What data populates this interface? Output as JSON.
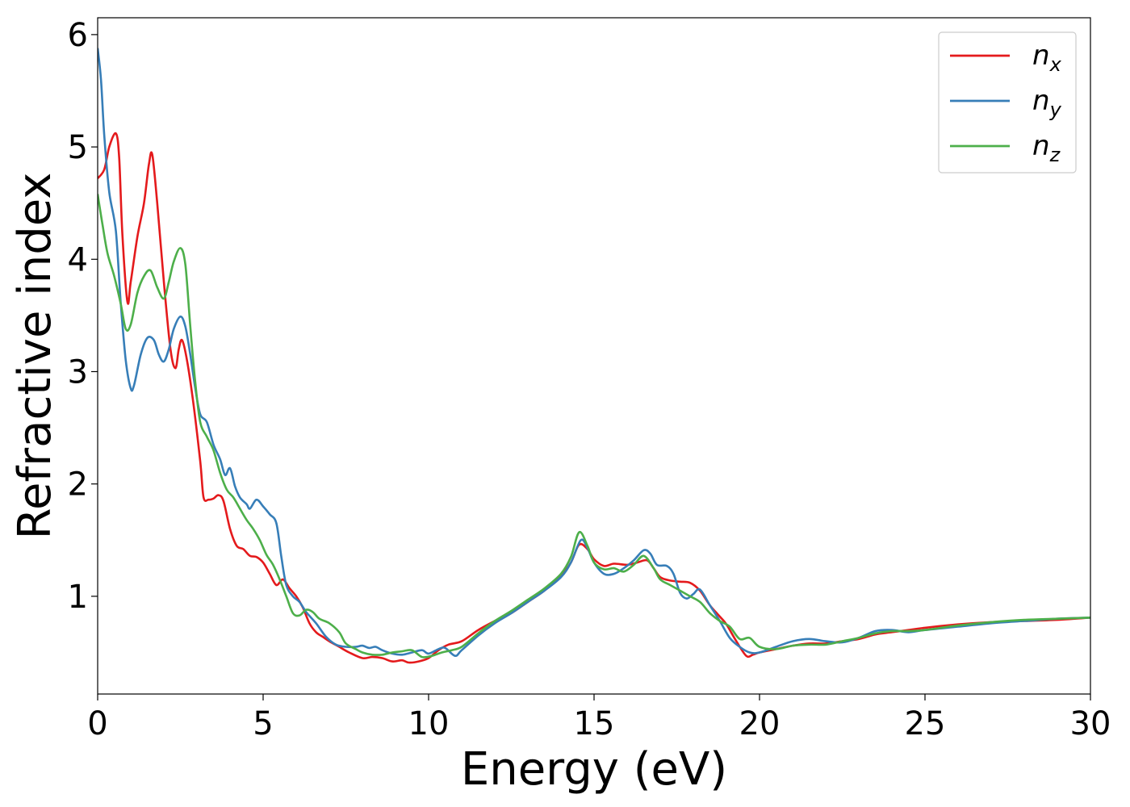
{
  "chart_data": {
    "type": "line",
    "xlabel": "Energy (eV)",
    "ylabel": "Refractive index",
    "xlim": [
      0,
      30
    ],
    "ylim": [
      0.13,
      6.15
    ],
    "xticks": [
      "0",
      "5",
      "10",
      "15",
      "20",
      "25",
      "30"
    ],
    "yticks": [
      "1",
      "2",
      "3",
      "4",
      "5",
      "6"
    ],
    "grid": false,
    "legend_position": "top-right",
    "series": [
      {
        "name": "n",
        "sub": "x",
        "color": "#e41a1c",
        "points": [
          [
            0,
            4.72
          ],
          [
            0.2,
            4.8
          ],
          [
            0.35,
            5.0
          ],
          [
            0.55,
            5.12
          ],
          [
            0.65,
            4.9
          ],
          [
            0.75,
            4.2
          ],
          [
            0.9,
            3.62
          ],
          [
            1.0,
            3.8
          ],
          [
            1.2,
            4.2
          ],
          [
            1.4,
            4.5
          ],
          [
            1.55,
            4.85
          ],
          [
            1.65,
            4.93
          ],
          [
            1.8,
            4.5
          ],
          [
            2.0,
            3.8
          ],
          [
            2.2,
            3.2
          ],
          [
            2.35,
            3.03
          ],
          [
            2.45,
            3.2
          ],
          [
            2.55,
            3.28
          ],
          [
            2.7,
            3.1
          ],
          [
            2.9,
            2.7
          ],
          [
            3.1,
            2.2
          ],
          [
            3.2,
            1.88
          ],
          [
            3.35,
            1.86
          ],
          [
            3.5,
            1.87
          ],
          [
            3.65,
            1.9
          ],
          [
            3.8,
            1.85
          ],
          [
            4.0,
            1.6
          ],
          [
            4.2,
            1.45
          ],
          [
            4.4,
            1.42
          ],
          [
            4.6,
            1.36
          ],
          [
            4.8,
            1.35
          ],
          [
            5.0,
            1.3
          ],
          [
            5.2,
            1.2
          ],
          [
            5.4,
            1.1
          ],
          [
            5.6,
            1.15
          ],
          [
            5.8,
            1.07
          ],
          [
            6.0,
            1.0
          ],
          [
            6.2,
            0.9
          ],
          [
            6.4,
            0.76
          ],
          [
            6.6,
            0.68
          ],
          [
            6.8,
            0.64
          ],
          [
            7.0,
            0.6
          ],
          [
            7.3,
            0.55
          ],
          [
            7.6,
            0.5
          ],
          [
            8.0,
            0.45
          ],
          [
            8.3,
            0.46
          ],
          [
            8.6,
            0.45
          ],
          [
            8.9,
            0.42
          ],
          [
            9.2,
            0.43
          ],
          [
            9.4,
            0.41
          ],
          [
            9.7,
            0.42
          ],
          [
            10.0,
            0.45
          ],
          [
            10.3,
            0.52
          ],
          [
            10.6,
            0.57
          ],
          [
            11.0,
            0.6
          ],
          [
            11.5,
            0.7
          ],
          [
            12.0,
            0.78
          ],
          [
            12.5,
            0.85
          ],
          [
            13.0,
            0.95
          ],
          [
            13.5,
            1.05
          ],
          [
            14.0,
            1.18
          ],
          [
            14.3,
            1.3
          ],
          [
            14.55,
            1.46
          ],
          [
            14.8,
            1.42
          ],
          [
            15.0,
            1.33
          ],
          [
            15.3,
            1.27
          ],
          [
            15.6,
            1.29
          ],
          [
            16.0,
            1.28
          ],
          [
            16.3,
            1.3
          ],
          [
            16.6,
            1.32
          ],
          [
            16.8,
            1.25
          ],
          [
            17.0,
            1.17
          ],
          [
            17.3,
            1.14
          ],
          [
            17.6,
            1.13
          ],
          [
            17.9,
            1.12
          ],
          [
            18.2,
            1.05
          ],
          [
            18.5,
            0.92
          ],
          [
            18.8,
            0.82
          ],
          [
            19.0,
            0.75
          ],
          [
            19.3,
            0.6
          ],
          [
            19.6,
            0.47
          ],
          [
            19.8,
            0.48
          ],
          [
            20.0,
            0.5
          ],
          [
            20.5,
            0.53
          ],
          [
            21.0,
            0.56
          ],
          [
            21.5,
            0.58
          ],
          [
            22.0,
            0.58
          ],
          [
            22.5,
            0.6
          ],
          [
            23.0,
            0.62
          ],
          [
            23.5,
            0.66
          ],
          [
            24.0,
            0.68
          ],
          [
            24.5,
            0.7
          ],
          [
            25.0,
            0.72
          ],
          [
            26.0,
            0.75
          ],
          [
            27.0,
            0.77
          ],
          [
            28.0,
            0.78
          ],
          [
            29.0,
            0.79
          ],
          [
            30.0,
            0.81
          ]
        ]
      },
      {
        "name": "n",
        "sub": "y",
        "color": "#377eb8",
        "points": [
          [
            0,
            5.88
          ],
          [
            0.1,
            5.6
          ],
          [
            0.2,
            5.1
          ],
          [
            0.35,
            4.6
          ],
          [
            0.55,
            4.25
          ],
          [
            0.7,
            3.6
          ],
          [
            0.85,
            3.1
          ],
          [
            1.0,
            2.85
          ],
          [
            1.1,
            2.88
          ],
          [
            1.3,
            3.15
          ],
          [
            1.5,
            3.3
          ],
          [
            1.7,
            3.28
          ],
          [
            1.85,
            3.15
          ],
          [
            2.0,
            3.09
          ],
          [
            2.15,
            3.2
          ],
          [
            2.3,
            3.38
          ],
          [
            2.5,
            3.49
          ],
          [
            2.65,
            3.4
          ],
          [
            2.8,
            3.15
          ],
          [
            2.95,
            2.85
          ],
          [
            3.1,
            2.62
          ],
          [
            3.3,
            2.55
          ],
          [
            3.5,
            2.35
          ],
          [
            3.7,
            2.22
          ],
          [
            3.85,
            2.08
          ],
          [
            4.0,
            2.14
          ],
          [
            4.15,
            1.98
          ],
          [
            4.3,
            1.88
          ],
          [
            4.5,
            1.82
          ],
          [
            4.6,
            1.78
          ],
          [
            4.8,
            1.86
          ],
          [
            5.0,
            1.8
          ],
          [
            5.2,
            1.73
          ],
          [
            5.4,
            1.65
          ],
          [
            5.55,
            1.35
          ],
          [
            5.7,
            1.1
          ],
          [
            5.9,
            1.0
          ],
          [
            6.1,
            0.95
          ],
          [
            6.3,
            0.86
          ],
          [
            6.6,
            0.76
          ],
          [
            6.9,
            0.64
          ],
          [
            7.2,
            0.57
          ],
          [
            7.5,
            0.55
          ],
          [
            7.8,
            0.55
          ],
          [
            8.0,
            0.56
          ],
          [
            8.2,
            0.54
          ],
          [
            8.4,
            0.55
          ],
          [
            8.6,
            0.52
          ],
          [
            8.9,
            0.49
          ],
          [
            9.2,
            0.48
          ],
          [
            9.5,
            0.5
          ],
          [
            9.8,
            0.52
          ],
          [
            10.0,
            0.49
          ],
          [
            10.3,
            0.53
          ],
          [
            10.5,
            0.54
          ],
          [
            10.8,
            0.47
          ],
          [
            11.0,
            0.52
          ],
          [
            11.5,
            0.65
          ],
          [
            12.0,
            0.76
          ],
          [
            12.5,
            0.85
          ],
          [
            13.0,
            0.95
          ],
          [
            13.5,
            1.05
          ],
          [
            14.0,
            1.17
          ],
          [
            14.3,
            1.3
          ],
          [
            14.6,
            1.5
          ],
          [
            14.8,
            1.43
          ],
          [
            15.0,
            1.3
          ],
          [
            15.3,
            1.2
          ],
          [
            15.6,
            1.2
          ],
          [
            15.9,
            1.25
          ],
          [
            16.2,
            1.32
          ],
          [
            16.5,
            1.41
          ],
          [
            16.7,
            1.38
          ],
          [
            16.9,
            1.28
          ],
          [
            17.2,
            1.27
          ],
          [
            17.4,
            1.2
          ],
          [
            17.6,
            1.03
          ],
          [
            17.8,
            0.98
          ],
          [
            18.0,
            1.02
          ],
          [
            18.2,
            1.06
          ],
          [
            18.5,
            0.92
          ],
          [
            18.8,
            0.78
          ],
          [
            19.1,
            0.63
          ],
          [
            19.4,
            0.55
          ],
          [
            19.7,
            0.5
          ],
          [
            20.0,
            0.5
          ],
          [
            20.5,
            0.55
          ],
          [
            21.0,
            0.6
          ],
          [
            21.5,
            0.62
          ],
          [
            22.0,
            0.6
          ],
          [
            22.5,
            0.59
          ],
          [
            23.0,
            0.63
          ],
          [
            23.5,
            0.69
          ],
          [
            24.0,
            0.7
          ],
          [
            24.5,
            0.68
          ],
          [
            25.0,
            0.7
          ],
          [
            26.0,
            0.73
          ],
          [
            27.0,
            0.76
          ],
          [
            28.0,
            0.78
          ],
          [
            29.0,
            0.8
          ],
          [
            30.0,
            0.81
          ]
        ]
      },
      {
        "name": "n",
        "sub": "z",
        "color": "#4daf4a",
        "points": [
          [
            0,
            4.58
          ],
          [
            0.15,
            4.3
          ],
          [
            0.3,
            4.05
          ],
          [
            0.5,
            3.85
          ],
          [
            0.7,
            3.6
          ],
          [
            0.85,
            3.38
          ],
          [
            1.0,
            3.42
          ],
          [
            1.2,
            3.7
          ],
          [
            1.4,
            3.85
          ],
          [
            1.6,
            3.9
          ],
          [
            1.8,
            3.75
          ],
          [
            2.0,
            3.65
          ],
          [
            2.15,
            3.8
          ],
          [
            2.3,
            3.98
          ],
          [
            2.5,
            4.1
          ],
          [
            2.65,
            3.95
          ],
          [
            2.8,
            3.4
          ],
          [
            2.95,
            2.9
          ],
          [
            3.1,
            2.55
          ],
          [
            3.3,
            2.42
          ],
          [
            3.5,
            2.3
          ],
          [
            3.7,
            2.1
          ],
          [
            3.9,
            1.95
          ],
          [
            4.1,
            1.88
          ],
          [
            4.3,
            1.78
          ],
          [
            4.5,
            1.68
          ],
          [
            4.7,
            1.6
          ],
          [
            4.9,
            1.5
          ],
          [
            5.1,
            1.37
          ],
          [
            5.3,
            1.28
          ],
          [
            5.5,
            1.15
          ],
          [
            5.7,
            1.0
          ],
          [
            5.9,
            0.85
          ],
          [
            6.1,
            0.83
          ],
          [
            6.3,
            0.88
          ],
          [
            6.5,
            0.86
          ],
          [
            6.7,
            0.8
          ],
          [
            7.0,
            0.76
          ],
          [
            7.3,
            0.68
          ],
          [
            7.5,
            0.58
          ],
          [
            7.8,
            0.53
          ],
          [
            8.0,
            0.5
          ],
          [
            8.3,
            0.48
          ],
          [
            8.6,
            0.48
          ],
          [
            8.9,
            0.5
          ],
          [
            9.2,
            0.51
          ],
          [
            9.5,
            0.52
          ],
          [
            9.8,
            0.46
          ],
          [
            10.1,
            0.47
          ],
          [
            10.4,
            0.5
          ],
          [
            10.7,
            0.52
          ],
          [
            11.0,
            0.55
          ],
          [
            11.5,
            0.67
          ],
          [
            12.0,
            0.78
          ],
          [
            12.5,
            0.87
          ],
          [
            13.0,
            0.97
          ],
          [
            13.5,
            1.07
          ],
          [
            14.0,
            1.2
          ],
          [
            14.3,
            1.35
          ],
          [
            14.55,
            1.57
          ],
          [
            14.8,
            1.45
          ],
          [
            15.0,
            1.3
          ],
          [
            15.3,
            1.24
          ],
          [
            15.6,
            1.25
          ],
          [
            15.9,
            1.22
          ],
          [
            16.2,
            1.28
          ],
          [
            16.5,
            1.36
          ],
          [
            16.8,
            1.25
          ],
          [
            17.0,
            1.15
          ],
          [
            17.3,
            1.1
          ],
          [
            17.6,
            1.05
          ],
          [
            17.9,
            1.0
          ],
          [
            18.2,
            0.95
          ],
          [
            18.5,
            0.85
          ],
          [
            18.8,
            0.78
          ],
          [
            19.1,
            0.73
          ],
          [
            19.4,
            0.62
          ],
          [
            19.7,
            0.63
          ],
          [
            20.0,
            0.55
          ],
          [
            20.5,
            0.53
          ],
          [
            21.0,
            0.56
          ],
          [
            21.5,
            0.57
          ],
          [
            22.0,
            0.57
          ],
          [
            22.5,
            0.6
          ],
          [
            23.0,
            0.63
          ],
          [
            23.5,
            0.67
          ],
          [
            24.0,
            0.69
          ],
          [
            24.5,
            0.69
          ],
          [
            25.0,
            0.7
          ],
          [
            26.0,
            0.74
          ],
          [
            27.0,
            0.77
          ],
          [
            28.0,
            0.79
          ],
          [
            29.0,
            0.8
          ],
          [
            30.0,
            0.81
          ]
        ]
      }
    ]
  }
}
